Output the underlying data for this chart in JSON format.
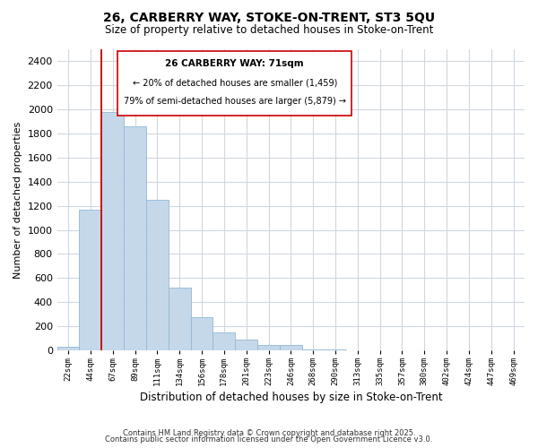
{
  "title": "26, CARBERRY WAY, STOKE-ON-TRENT, ST3 5QU",
  "subtitle": "Size of property relative to detached houses in Stoke-on-Trent",
  "bar_values": [
    30,
    1170,
    1980,
    1860,
    1250,
    520,
    275,
    150,
    85,
    45,
    40,
    10,
    5,
    2,
    1,
    1,
    0,
    0,
    0,
    0,
    0
  ],
  "bin_labels": [
    "22sqm",
    "44sqm",
    "67sqm",
    "89sqm",
    "111sqm",
    "134sqm",
    "156sqm",
    "178sqm",
    "201sqm",
    "223sqm",
    "246sqm",
    "268sqm",
    "290sqm",
    "313sqm",
    "335sqm",
    "357sqm",
    "380sqm",
    "402sqm",
    "424sqm",
    "447sqm",
    "469sqm"
  ],
  "bar_color": "#c5d8ea",
  "bar_edge_color": "#92b8d4",
  "xlabel": "Distribution of detached houses by size in Stoke-on-Trent",
  "ylabel": "Number of detached properties",
  "ylim": [
    0,
    2500
  ],
  "yticks": [
    0,
    200,
    400,
    600,
    800,
    1000,
    1200,
    1400,
    1600,
    1800,
    2000,
    2200,
    2400
  ],
  "vline_x_index": 2,
  "vline_color": "#cc0000",
  "annotation_title": "26 CARBERRY WAY: 71sqm",
  "annotation_line1": "← 20% of detached houses are smaller (1,459)",
  "annotation_line2": "79% of semi-detached houses are larger (5,879) →",
  "footer1": "Contains HM Land Registry data © Crown copyright and database right 2025.",
  "footer2": "Contains public sector information licensed under the Open Government Licence v3.0.",
  "background_color": "#ffffff",
  "plot_bg_color": "#ffffff",
  "grid_color": "#d0d8e0"
}
